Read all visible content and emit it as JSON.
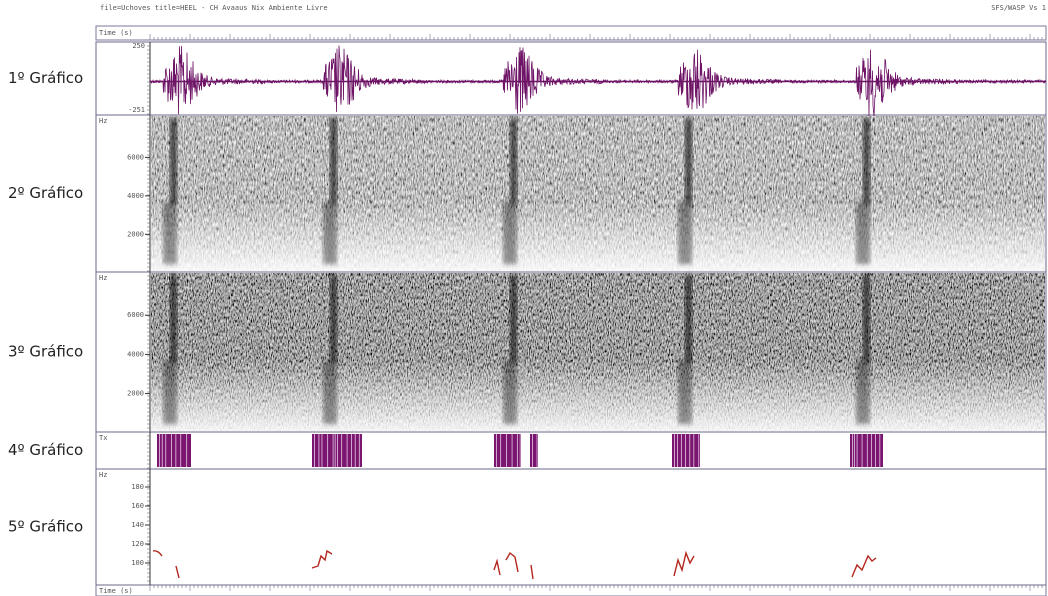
{
  "header": {
    "title": "file=Uchoves title=HEEL - CH Avaaus Nix Ambiente Livre",
    "version": "SFS/WASP Vs 1"
  },
  "ruler": {
    "top_label": "Time (s)",
    "bottom_label": "Time (s)"
  },
  "panels": [
    {
      "label": "1º Gráfico",
      "ticks": [
        "250",
        "-251"
      ]
    },
    {
      "label": "2º Gráfico",
      "unit": "Hz",
      "ticks": [
        "6000",
        "4000",
        "2000"
      ]
    },
    {
      "label": "3º Gráfico",
      "unit": "Hz",
      "ticks": [
        "6000",
        "4000",
        "2000"
      ]
    },
    {
      "label": "4º Gráfico",
      "unit": "Tx"
    },
    {
      "label": "5º Gráfico",
      "unit": "Hz",
      "ticks": [
        "180",
        "160",
        "140",
        "120",
        "100"
      ]
    }
  ]
}
